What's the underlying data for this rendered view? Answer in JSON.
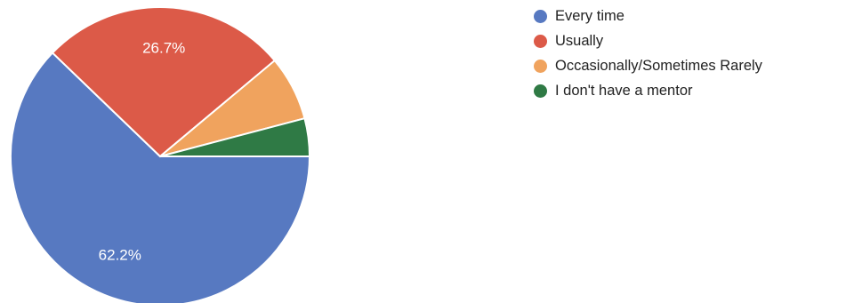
{
  "chart_data": {
    "type": "pie",
    "legend_position": "right",
    "slices": [
      {
        "label": "Every time",
        "value": 62.2,
        "display": "62.2%",
        "color": "#5779c1"
      },
      {
        "label": "Usually",
        "value": 26.7,
        "display": "26.7%",
        "color": "#dc5a48"
      },
      {
        "label": "Occasionally/Sometimes Rarely",
        "value": 7.0,
        "display": "",
        "color": "#f0a35e"
      },
      {
        "label": "I don't have a mentor",
        "value": 4.1,
        "display": "",
        "color": "#2f7a45"
      }
    ]
  }
}
